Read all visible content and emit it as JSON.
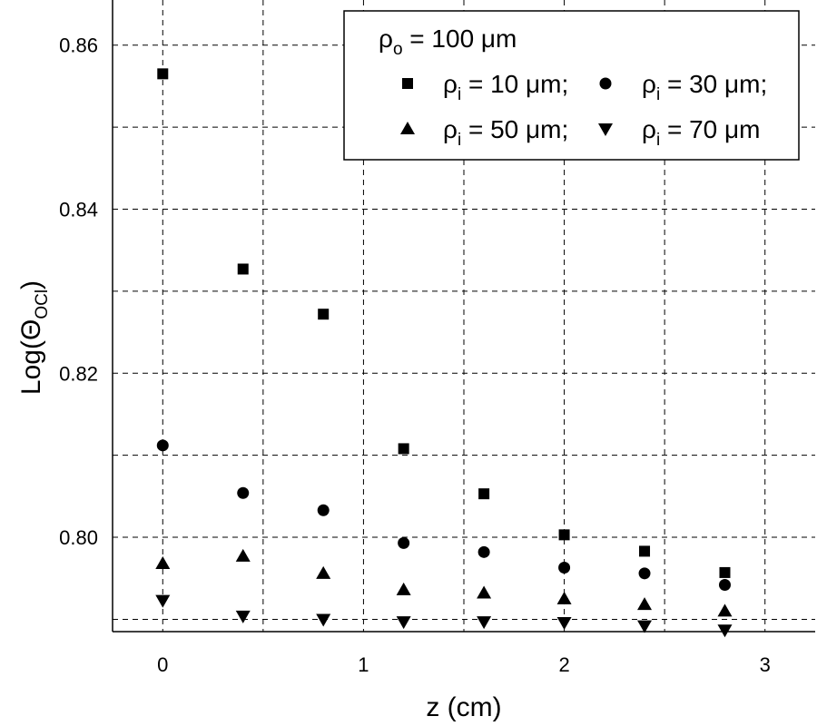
{
  "chart_data": {
    "type": "scatter",
    "title": "",
    "xlabel": "z (cm)",
    "ylabel_main": "Log(",
    "ylabel_symbol": "Θ",
    "ylabel_sub": "OCl",
    "ylabel_close": ")",
    "xlim": [
      -0.25,
      3.25
    ],
    "ylim": [
      0.7885,
      0.8655
    ],
    "x_ticks": [
      0,
      1,
      2,
      3
    ],
    "x_tick_labels": [
      "0",
      "1",
      "2",
      "3"
    ],
    "y_ticks": [
      0.8,
      0.82,
      0.84,
      0.86
    ],
    "y_tick_labels": [
      "0.80",
      "0.82",
      "0.84",
      "0.86"
    ],
    "x_grid": [
      0,
      0.5,
      1,
      1.5,
      2,
      2.5,
      3
    ],
    "y_grid": [
      0.79,
      0.8,
      0.81,
      0.82,
      0.83,
      0.84,
      0.85,
      0.86
    ],
    "grid": true,
    "legend": {
      "placement": "top-right",
      "header": {
        "base": "ρ",
        "sub": "o",
        "rest": " = 100 μm"
      },
      "entries": [
        {
          "marker": "square",
          "base": "ρ",
          "sub": "i",
          "rest": " = 10 μm;"
        },
        {
          "marker": "circle",
          "base": "ρ",
          "sub": "i",
          "rest": " = 30 μm;"
        },
        {
          "marker": "triangle-up",
          "base": "ρ",
          "sub": "i",
          "rest": " = 50 μm;"
        },
        {
          "marker": "triangle-down",
          "base": "ρ",
          "sub": "i",
          "rest": " = 70 μm"
        }
      ]
    },
    "x": [
      0,
      0.4,
      0.8,
      1.2,
      1.6,
      2.0,
      2.4,
      2.8
    ],
    "series": [
      {
        "marker": "square",
        "values": [
          0.8565,
          0.8327,
          0.8272,
          0.8108,
          0.8053,
          0.8003,
          0.7983,
          0.7957
        ]
      },
      {
        "marker": "circle",
        "values": [
          0.8112,
          0.8054,
          0.8033,
          0.7993,
          0.7982,
          0.7963,
          0.7956,
          0.7942
        ]
      },
      {
        "marker": "triangle-up",
        "values": [
          0.7968,
          0.7977,
          0.7956,
          0.7936,
          0.7932,
          0.7925,
          0.7918,
          0.791
        ]
      },
      {
        "marker": "triangle-down",
        "values": [
          0.7923,
          0.7904,
          0.79,
          0.7897,
          0.7897,
          0.7896,
          0.7892,
          0.7887
        ]
      }
    ]
  }
}
